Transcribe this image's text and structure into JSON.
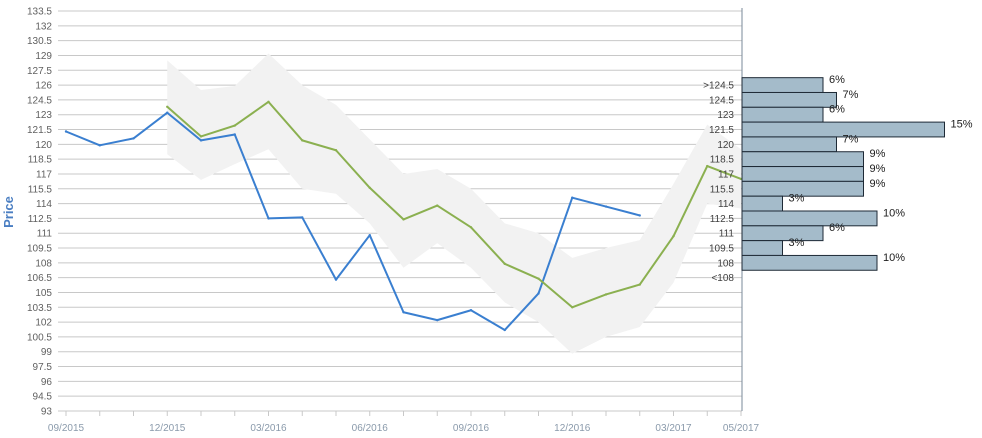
{
  "chart_data": {
    "type": "line",
    "ylabel": "Price",
    "ylim": [
      93,
      133.5
    ],
    "y_ticks": [
      "93",
      "94.5",
      "96",
      "97.5",
      "99",
      "100.5",
      "102",
      "103.5",
      "105",
      "106.5",
      "108",
      "109.5",
      "111",
      "112.5",
      "114",
      "115.5",
      "117",
      "118.5",
      "120",
      "121.5",
      "123",
      "124.5",
      "126",
      "127.5",
      "129",
      "130.5",
      "132",
      "133.5"
    ],
    "x_tick_labels": [
      "09/2015",
      "12/2015",
      "03/2016",
      "06/2016",
      "09/2016",
      "12/2016",
      "03/2017",
      "05/2017"
    ],
    "x_tick_months": [
      0,
      3,
      6,
      9,
      12,
      15,
      18,
      20
    ],
    "grid": true,
    "colors": {
      "price": "#3a7fd0",
      "target": "#8bb050",
      "band": "#f2f2f2",
      "bar_fill": "#a4bbca",
      "bar_stroke": "#1e2a36",
      "grid": "#c8c8c8"
    },
    "series": [
      {
        "key": "price",
        "x": [
          0,
          1,
          2,
          3,
          4,
          5,
          6,
          7,
          8,
          9,
          10,
          11,
          12,
          13,
          14,
          15,
          16,
          17
        ],
        "values": [
          121.3,
          119.9,
          120.6,
          123.2,
          120.4,
          121.0,
          112.5,
          112.6,
          106.3,
          110.8,
          103.0,
          102.2,
          103.2,
          101.2,
          104.9,
          114.6,
          113.7,
          112.8
        ]
      },
      {
        "key": "target",
        "x": [
          3,
          4,
          5,
          6,
          7,
          8,
          9,
          10,
          11,
          12,
          13,
          14,
          15,
          16,
          17,
          18,
          19,
          20
        ],
        "values": [
          123.8,
          120.8,
          121.9,
          124.3,
          120.4,
          119.4,
          115.6,
          112.4,
          113.8,
          111.6,
          107.9,
          106.4,
          103.5,
          104.8,
          105.8,
          110.7,
          117.8,
          116.5
        ]
      }
    ],
    "target_range": {
      "x": [
        3,
        4,
        5,
        6,
        7,
        8,
        9,
        10,
        11,
        12,
        13,
        14,
        15,
        16,
        17,
        18,
        19,
        20
      ],
      "low": [
        119.0,
        116.4,
        118.0,
        119.5,
        115.5,
        115.0,
        112.0,
        107.5,
        110.0,
        107.5,
        104.0,
        102.0,
        98.8,
        100.5,
        101.5,
        106.0,
        114.0,
        113.5
      ],
      "high": [
        128.5,
        125.5,
        125.9,
        129.2,
        126.0,
        124.0,
        120.5,
        117.0,
        117.5,
        115.5,
        112.0,
        111.0,
        108.5,
        109.5,
        110.3,
        116.0,
        122.0,
        119.5
      ]
    },
    "distribution": [
      {
        "label": ">124.5",
        "y": 126,
        "pct": 6,
        "pct_label": "6%"
      },
      {
        "label": "124.5",
        "y": 124.5,
        "pct": 7,
        "pct_label": "7%"
      },
      {
        "label": "123",
        "y": 123,
        "pct": 6,
        "pct_label": "6%"
      },
      {
        "label": "121.5",
        "y": 121.5,
        "pct": 15,
        "pct_label": "15%"
      },
      {
        "label": "120",
        "y": 120,
        "pct": 7,
        "pct_label": "7%"
      },
      {
        "label": "118.5",
        "y": 118.5,
        "pct": 9,
        "pct_label": "9%"
      },
      {
        "label": "117",
        "y": 117,
        "pct": 9,
        "pct_label": "9%"
      },
      {
        "label": "115.5",
        "y": 115.5,
        "pct": 9,
        "pct_label": "9%"
      },
      {
        "label": "114",
        "y": 114,
        "pct": 3,
        "pct_label": "3%"
      },
      {
        "label": "112.5",
        "y": 112.5,
        "pct": 10,
        "pct_label": "10%"
      },
      {
        "label": "111",
        "y": 111,
        "pct": 6,
        "pct_label": "6%"
      },
      {
        "label": "109.5",
        "y": 109.5,
        "pct": 3,
        "pct_label": "3%"
      },
      {
        "label": "108",
        "y": 108,
        "pct": 10,
        "pct_label": "10%"
      },
      {
        "label": "<108",
        "y": 106.5,
        "pct": null,
        "pct_label": ""
      }
    ]
  }
}
